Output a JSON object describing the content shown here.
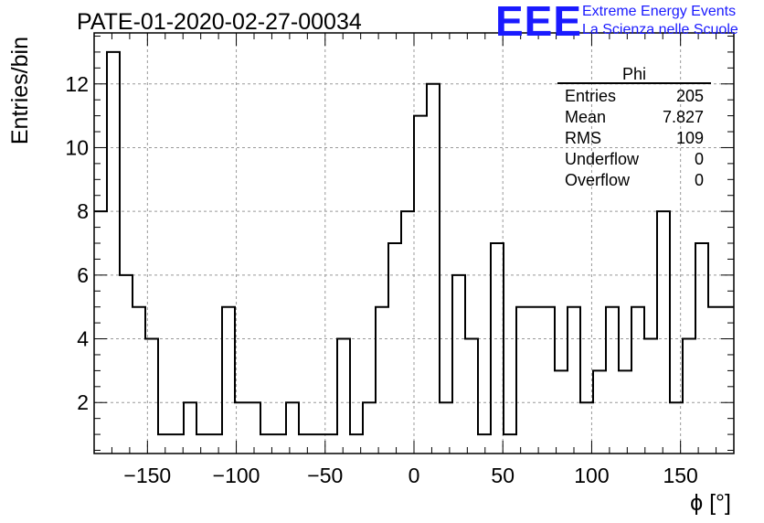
{
  "title": "PATE-01-2020-02-27-00034",
  "brand": {
    "logo": "EEE",
    "line1": "Extreme Energy Events",
    "line2": "La Scienza nelle Scuole",
    "color": "#1a1aff"
  },
  "stats_box": {
    "title": "Phi",
    "rows": [
      {
        "label": "Entries",
        "value": "205"
      },
      {
        "label": "Mean",
        "value": "7.827"
      },
      {
        "label": "RMS",
        "value": "109"
      },
      {
        "label": "Underflow",
        "value": "0"
      },
      {
        "label": "Overflow",
        "value": "0"
      }
    ]
  },
  "chart_data": {
    "type": "bar",
    "style": "step-histogram",
    "title": "PATE-01-2020-02-27-00034",
    "xlabel": "ϕ [°]",
    "ylabel": "Entries/bin",
    "xlim": [
      -180,
      180
    ],
    "ylim": [
      0.4,
      13.6
    ],
    "x_ticks": [
      -150,
      -100,
      -50,
      0,
      50,
      100,
      150
    ],
    "x_tick_labels": [
      "−150",
      "−100",
      "−50",
      "0",
      "50",
      "100",
      "150"
    ],
    "y_ticks": [
      2,
      4,
      6,
      8,
      10,
      12
    ],
    "y_tick_labels": [
      "2",
      "4",
      "6",
      "8",
      "10",
      "12"
    ],
    "grid": true,
    "bin_edges_start": -180,
    "bin_width": 7.2,
    "values": [
      8,
      13,
      6,
      5,
      4,
      1,
      1,
      2,
      1,
      1,
      5,
      2,
      2,
      1,
      1,
      2,
      1,
      1,
      1,
      4,
      1,
      2,
      5,
      7,
      8,
      11,
      12,
      2,
      6,
      4,
      1,
      7,
      1,
      5,
      5,
      5,
      3,
      5,
      2,
      3,
      5,
      3,
      5,
      4,
      8,
      2,
      4,
      7,
      5,
      5
    ]
  }
}
